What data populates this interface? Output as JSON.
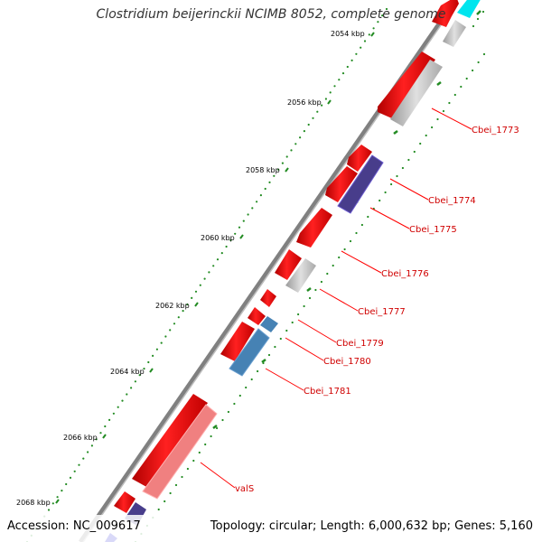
{
  "title": "Clostridium beijerinckii NCIMB 8052, complete genome",
  "footer": {
    "accession": "Accession: NC_009617",
    "summary": "Topology: circular; Length: 6,000,632 bp; Genes: 5,160"
  },
  "ruler": [
    "2054 kbp",
    "2056 kbp",
    "2058 kbp",
    "2060 kbp",
    "2062 kbp",
    "2064 kbp",
    "2066 kbp",
    "2068 kbp"
  ],
  "genes": [
    {
      "label": "Cbei_1773"
    },
    {
      "label": "Cbei_1774"
    },
    {
      "label": "Cbei_1775"
    },
    {
      "label": "Cbei_1776"
    },
    {
      "label": "Cbei_1777"
    },
    {
      "label": "Cbei_1779"
    },
    {
      "label": "Cbei_1780"
    },
    {
      "label": "Cbei_1781"
    },
    {
      "label": "valS"
    }
  ],
  "colors": {
    "cds": "#ff0000",
    "other": "#c0c0c0",
    "purple": "#483d8b",
    "blue": "#4682b4",
    "pink": "#f08080",
    "cyan": "#00e5ee",
    "dots": "#228b22",
    "backbone": "#808080",
    "label": "#d00000"
  }
}
